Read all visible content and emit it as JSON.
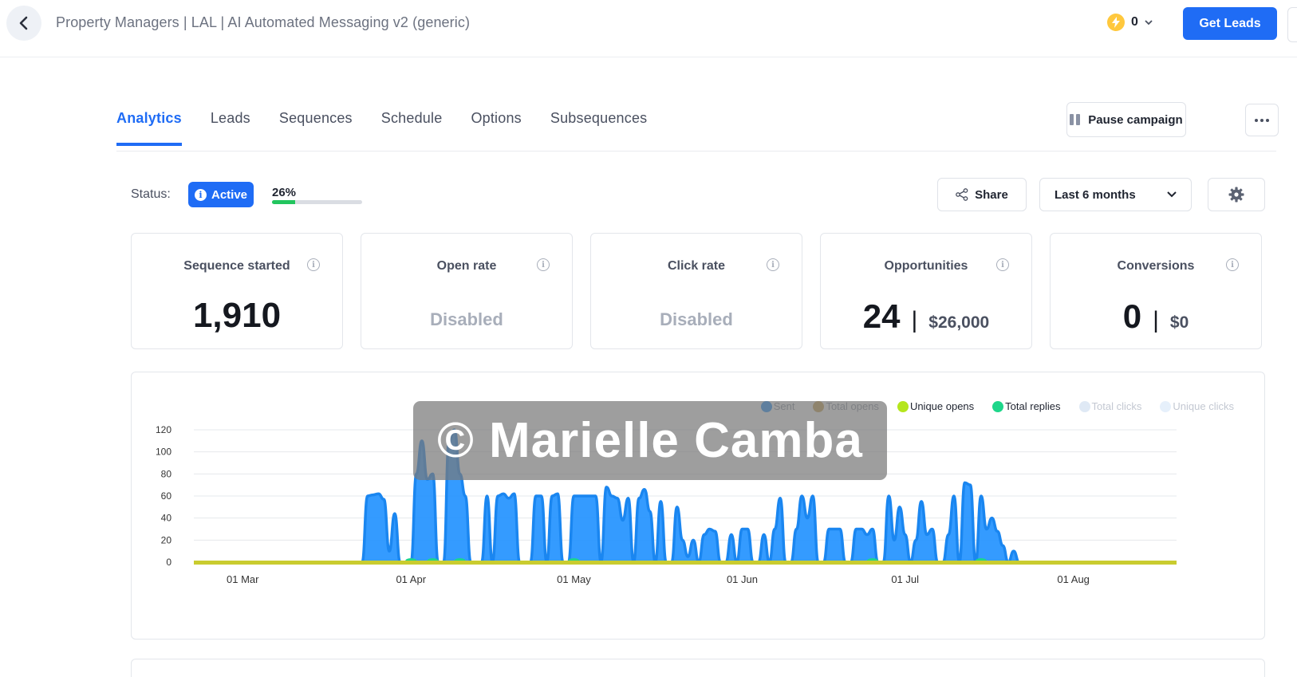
{
  "header": {
    "breadcrumb": "Property Managers | LAL | AI Automated Messaging v2 (generic)",
    "credits": "0",
    "get_leads": "Get Leads"
  },
  "tabs": [
    {
      "label": "Analytics",
      "active": true
    },
    {
      "label": "Leads"
    },
    {
      "label": "Sequences"
    },
    {
      "label": "Schedule"
    },
    {
      "label": "Options"
    },
    {
      "label": "Subsequences"
    }
  ],
  "actions": {
    "pause_campaign": "Pause campaign",
    "share": "Share",
    "range": "Last 6 months"
  },
  "status": {
    "label": "Status:",
    "value": "Active",
    "progress_text": "26%",
    "progress_percent": 26
  },
  "metrics": {
    "sequence_started": {
      "title": "Sequence started",
      "value": "1,910"
    },
    "open_rate": {
      "title": "Open rate",
      "value": "Disabled"
    },
    "click_rate": {
      "title": "Click rate",
      "value": "Disabled"
    },
    "opportunities": {
      "title": "Opportunities",
      "count": "24",
      "amount": "$26,000"
    },
    "conversions": {
      "title": "Conversions",
      "count": "0",
      "amount": "$0"
    }
  },
  "watermark": "© Marielle Camba",
  "colors": {
    "accent": "#1f6cf5",
    "sent": "#1e90ff",
    "total_opens": "#c8a050",
    "unique_opens": "#b5e61d",
    "total_replies": "#1ed68a",
    "total_clicks": "#dfe9f5",
    "unique_clicks": "#e6f0fb",
    "progress": "#22c55e"
  },
  "chart_data": {
    "type": "area",
    "x_start": "2024-02-21",
    "x_end": "2024-08-20",
    "x_ticks": [
      "01 Mar",
      "01 Apr",
      "01 May",
      "01 Jun",
      "01 Jul",
      "01 Aug"
    ],
    "y_ticks": [
      "0",
      "20",
      "40",
      "60",
      "80",
      "100",
      "120"
    ],
    "ylim": [
      0,
      120
    ],
    "grid": true,
    "legend_position": "top-right",
    "series": [
      {
        "name": "Sent",
        "color": "#1e90ff",
        "points": [
          [
            "2024-03-23",
            0
          ],
          [
            "2024-03-24",
            60
          ],
          [
            "2024-03-25",
            61
          ],
          [
            "2024-03-26",
            62
          ],
          [
            "2024-03-27",
            57
          ],
          [
            "2024-03-28",
            10
          ],
          [
            "2024-03-29",
            44
          ],
          [
            "2024-03-30",
            0
          ],
          [
            "2024-04-01",
            0
          ],
          [
            "2024-04-02",
            80
          ],
          [
            "2024-04-03",
            110
          ],
          [
            "2024-04-04",
            75
          ],
          [
            "2024-04-05",
            80
          ],
          [
            "2024-04-06",
            0
          ],
          [
            "2024-04-07",
            0
          ],
          [
            "2024-04-08",
            110
          ],
          [
            "2024-04-09",
            120
          ],
          [
            "2024-04-10",
            80
          ],
          [
            "2024-04-11",
            60
          ],
          [
            "2024-04-12",
            0
          ],
          [
            "2024-04-14",
            0
          ],
          [
            "2024-04-15",
            60
          ],
          [
            "2024-04-16",
            0
          ],
          [
            "2024-04-17",
            60
          ],
          [
            "2024-04-18",
            62
          ],
          [
            "2024-04-19",
            58
          ],
          [
            "2024-04-20",
            62
          ],
          [
            "2024-04-21",
            0
          ],
          [
            "2024-04-23",
            0
          ],
          [
            "2024-04-24",
            60
          ],
          [
            "2024-04-25",
            60
          ],
          [
            "2024-04-26",
            0
          ],
          [
            "2024-04-27",
            60
          ],
          [
            "2024-04-28",
            62
          ],
          [
            "2024-04-29",
            0
          ],
          [
            "2024-04-30",
            0
          ],
          [
            "2024-05-01",
            60
          ],
          [
            "2024-05-05",
            60
          ],
          [
            "2024-05-06",
            0
          ],
          [
            "2024-05-07",
            68
          ],
          [
            "2024-05-08",
            60
          ],
          [
            "2024-05-09",
            58
          ],
          [
            "2024-05-10",
            38
          ],
          [
            "2024-05-11",
            58
          ],
          [
            "2024-05-12",
            0
          ],
          [
            "2024-05-13",
            58
          ],
          [
            "2024-05-14",
            66
          ],
          [
            "2024-05-15",
            46
          ],
          [
            "2024-05-16",
            0
          ],
          [
            "2024-05-17",
            55
          ],
          [
            "2024-05-18",
            0
          ],
          [
            "2024-05-19",
            0
          ],
          [
            "2024-05-20",
            50
          ],
          [
            "2024-05-21",
            20
          ],
          [
            "2024-05-22",
            5
          ],
          [
            "2024-05-23",
            20
          ],
          [
            "2024-05-24",
            0
          ],
          [
            "2024-05-25",
            25
          ],
          [
            "2024-05-26",
            30
          ],
          [
            "2024-05-27",
            28
          ],
          [
            "2024-05-28",
            0
          ],
          [
            "2024-05-29",
            0
          ],
          [
            "2024-05-30",
            25
          ],
          [
            "2024-05-31",
            0
          ],
          [
            "2024-06-01",
            30
          ],
          [
            "2024-06-02",
            30
          ],
          [
            "2024-06-03",
            0
          ],
          [
            "2024-06-04",
            0
          ],
          [
            "2024-06-05",
            25
          ],
          [
            "2024-06-06",
            0
          ],
          [
            "2024-06-07",
            30
          ],
          [
            "2024-06-08",
            58
          ],
          [
            "2024-06-09",
            0
          ],
          [
            "2024-06-10",
            0
          ],
          [
            "2024-06-11",
            30
          ],
          [
            "2024-06-12",
            60
          ],
          [
            "2024-06-13",
            40
          ],
          [
            "2024-06-14",
            60
          ],
          [
            "2024-06-15",
            0
          ],
          [
            "2024-06-16",
            0
          ],
          [
            "2024-06-17",
            30
          ],
          [
            "2024-06-18",
            30
          ],
          [
            "2024-06-19",
            30
          ],
          [
            "2024-06-20",
            0
          ],
          [
            "2024-06-21",
            0
          ],
          [
            "2024-06-22",
            30
          ],
          [
            "2024-06-23",
            30
          ],
          [
            "2024-06-24",
            25
          ],
          [
            "2024-06-25",
            30
          ],
          [
            "2024-06-26",
            0
          ],
          [
            "2024-06-27",
            0
          ],
          [
            "2024-06-28",
            60
          ],
          [
            "2024-06-29",
            20
          ],
          [
            "2024-06-30",
            50
          ],
          [
            "2024-07-01",
            25
          ],
          [
            "2024-07-02",
            0
          ],
          [
            "2024-07-03",
            20
          ],
          [
            "2024-07-04",
            55
          ],
          [
            "2024-07-05",
            25
          ],
          [
            "2024-07-06",
            30
          ],
          [
            "2024-07-07",
            0
          ],
          [
            "2024-07-08",
            0
          ],
          [
            "2024-07-09",
            25
          ],
          [
            "2024-07-10",
            60
          ],
          [
            "2024-07-11",
            0
          ],
          [
            "2024-07-12",
            72
          ],
          [
            "2024-07-13",
            70
          ],
          [
            "2024-07-14",
            0
          ],
          [
            "2024-07-15",
            60
          ],
          [
            "2024-07-16",
            30
          ],
          [
            "2024-07-17",
            40
          ],
          [
            "2024-07-18",
            28
          ],
          [
            "2024-07-19",
            15
          ],
          [
            "2024-07-20",
            0
          ],
          [
            "2024-07-21",
            10
          ],
          [
            "2024-07-22",
            0
          ]
        ]
      },
      {
        "name": "Total opens",
        "color": "#c8a050",
        "points": []
      },
      {
        "name": "Unique opens",
        "color": "#b5e61d",
        "points": []
      },
      {
        "name": "Total replies",
        "color": "#1ed68a",
        "points": [
          [
            "2024-04-01",
            2
          ],
          [
            "2024-04-05",
            3
          ],
          [
            "2024-04-10",
            2
          ],
          [
            "2024-05-01",
            2
          ],
          [
            "2024-06-25",
            3
          ],
          [
            "2024-07-15",
            2
          ]
        ]
      },
      {
        "name": "Total clicks",
        "color": "#dfe9f5",
        "points": []
      },
      {
        "name": "Unique clicks",
        "color": "#e6f0fb",
        "points": []
      }
    ]
  }
}
